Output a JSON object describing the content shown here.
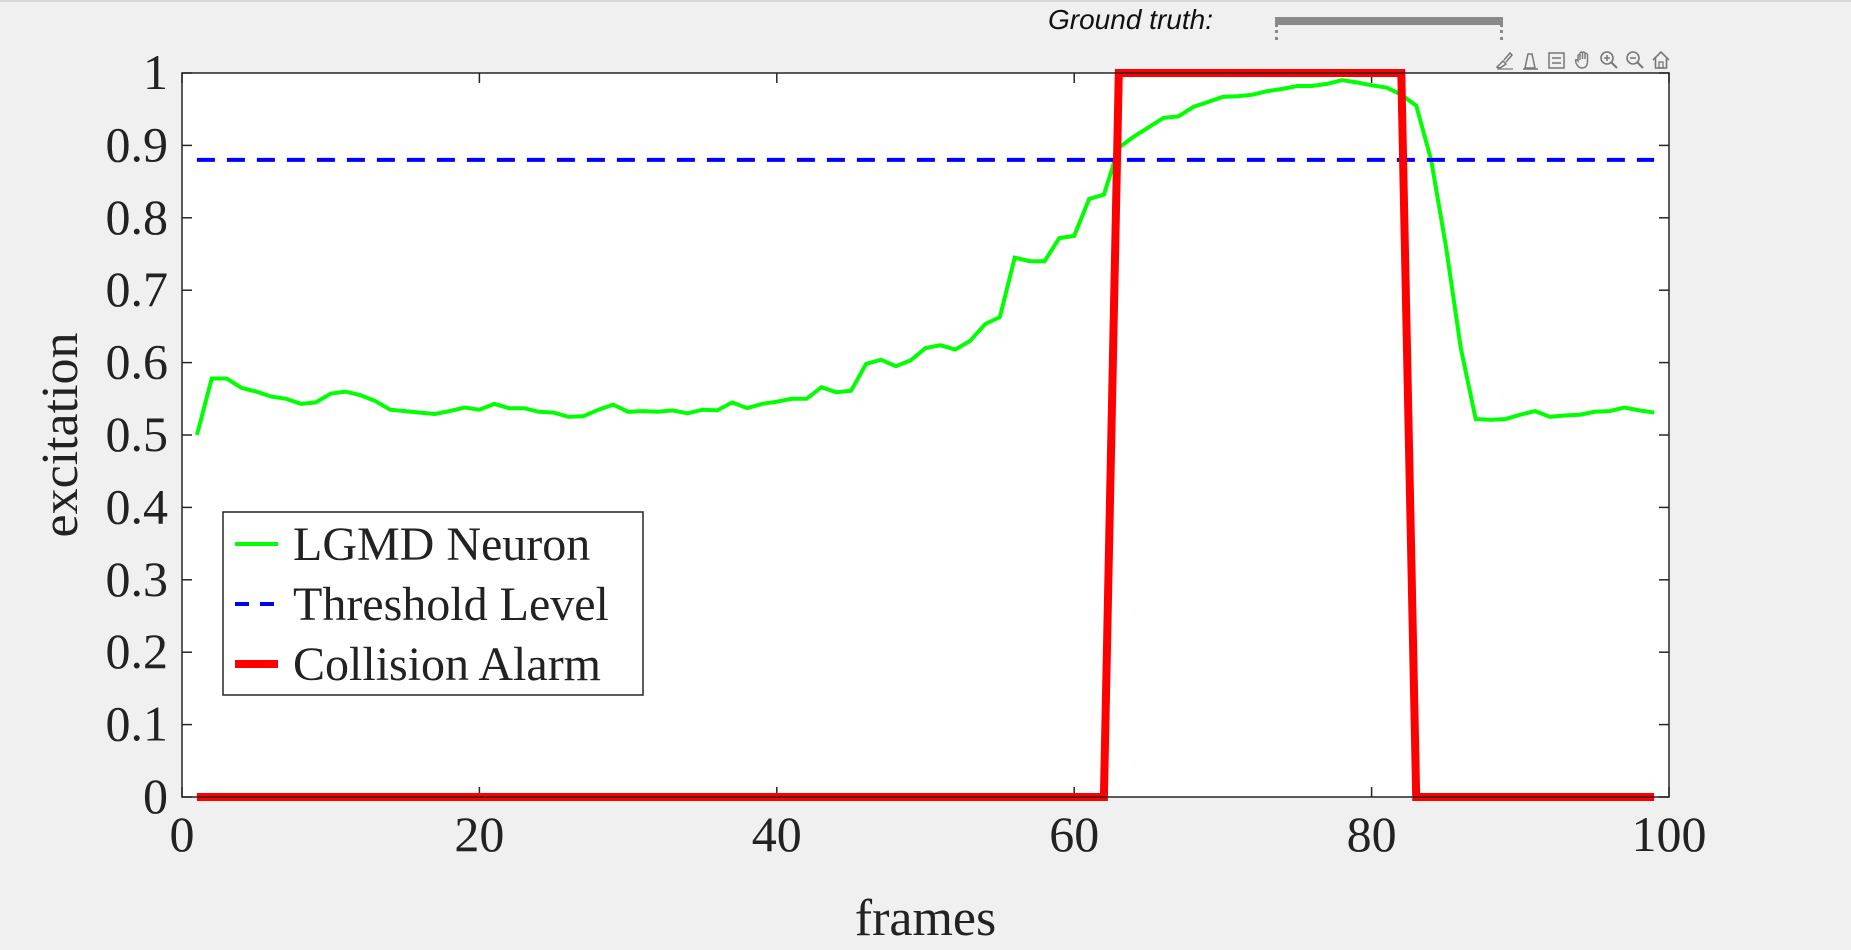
{
  "ground_truth": {
    "label": "Ground truth:",
    "range_frames": [
      73.5,
      88.7
    ]
  },
  "toolbar": {
    "icons": [
      "brush-icon",
      "datatip-icon",
      "legend-icon",
      "pan-icon",
      "zoom-in-icon",
      "zoom-out-icon",
      "home-icon"
    ]
  },
  "chart_data": {
    "type": "line",
    "xlabel": "frames",
    "ylabel": "excitation",
    "xlim": [
      0,
      100
    ],
    "ylim": [
      0,
      1
    ],
    "xticks": [
      0,
      20,
      40,
      60,
      80,
      100
    ],
    "yticks": [
      0,
      0.1,
      0.2,
      0.3,
      0.4,
      0.5,
      0.6,
      0.7,
      0.8,
      0.9,
      1
    ],
    "xtick_labels": [
      "0",
      "20",
      "40",
      "60",
      "80",
      "100"
    ],
    "ytick_labels": [
      "0",
      "0.1",
      "0.2",
      "0.3",
      "0.4",
      "0.5",
      "0.6",
      "0.7",
      "0.8",
      "0.9",
      "1"
    ],
    "grid": false,
    "legend_position": "bottom-left",
    "series": [
      {
        "name": "LGMD Neuron",
        "color": "#00ff00",
        "style": "solid",
        "x": [
          1,
          2,
          3,
          4,
          5,
          6,
          7,
          8,
          9,
          10,
          11,
          12,
          13,
          14,
          15,
          16,
          17,
          18,
          19,
          20,
          21,
          22,
          23,
          24,
          25,
          26,
          27,
          28,
          29,
          30,
          31,
          32,
          33,
          34,
          35,
          36,
          37,
          38,
          39,
          40,
          41,
          42,
          43,
          44,
          45,
          46,
          47,
          48,
          49,
          50,
          51,
          52,
          53,
          54,
          55,
          56,
          57,
          58,
          59,
          60,
          61,
          62,
          63,
          64,
          65,
          66,
          67,
          68,
          69,
          70,
          71,
          72,
          73,
          74,
          75,
          76,
          77,
          78,
          79,
          80,
          81,
          82,
          83,
          84,
          85,
          86,
          87,
          88,
          89,
          90,
          91,
          92,
          93,
          94,
          95,
          96,
          97,
          98,
          99
        ],
        "y": [
          0.5,
          0.578,
          0.578,
          0.565,
          0.56,
          0.553,
          0.55,
          0.543,
          0.545,
          0.557,
          0.56,
          0.555,
          0.547,
          0.535,
          0.533,
          0.531,
          0.529,
          0.533,
          0.538,
          0.535,
          0.543,
          0.537,
          0.537,
          0.532,
          0.531,
          0.525,
          0.526,
          0.535,
          0.542,
          0.532,
          0.533,
          0.532,
          0.534,
          0.53,
          0.535,
          0.534,
          0.545,
          0.537,
          0.543,
          0.546,
          0.55,
          0.55,
          0.566,
          0.559,
          0.561,
          0.598,
          0.604,
          0.595,
          0.603,
          0.62,
          0.624,
          0.618,
          0.63,
          0.653,
          0.663,
          0.745,
          0.74,
          0.74,
          0.772,
          0.775,
          0.826,
          0.832,
          0.897,
          0.912,
          0.925,
          0.938,
          0.94,
          0.953,
          0.96,
          0.967,
          0.968,
          0.97,
          0.975,
          0.978,
          0.982,
          0.982,
          0.985,
          0.99,
          0.987,
          0.983,
          0.98,
          0.97,
          0.955,
          0.88,
          0.76,
          0.62,
          0.522,
          0.521,
          0.522,
          0.528,
          0.533,
          0.525,
          0.527,
          0.528,
          0.532,
          0.533,
          0.538,
          0.534,
          0.531
        ]
      },
      {
        "name": "Threshold Level",
        "color": "#0000ff",
        "style": "dashed",
        "x": [
          1,
          99
        ],
        "y": [
          0.88,
          0.88
        ]
      },
      {
        "name": "Collision Alarm",
        "color": "#ff0000",
        "style": "solid-thick",
        "x": [
          1,
          62,
          63,
          82,
          83,
          99
        ],
        "y": [
          0,
          0,
          1,
          1,
          0,
          0
        ]
      }
    ]
  }
}
